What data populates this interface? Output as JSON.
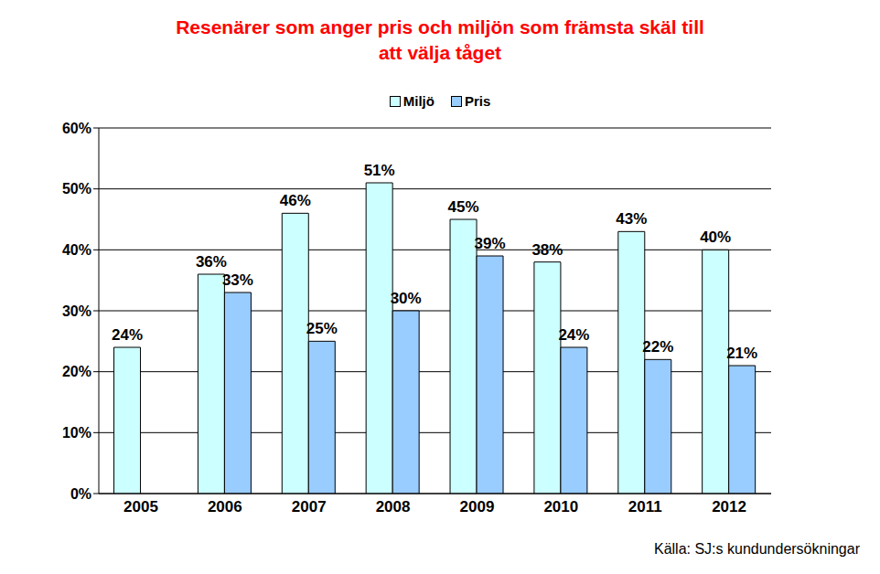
{
  "chart_data": {
    "type": "bar",
    "title": "Resenärer som anger pris och miljön som främsta skäl till att välja tåget",
    "annotations": [
      "Källa: SJ:s kundundersökningar"
    ],
    "categories": [
      "2005",
      "2006",
      "2007",
      "2008",
      "2009",
      "2010",
      "2011",
      "2012"
    ],
    "series": [
      {
        "name": "Miljö",
        "color": "#ccffff",
        "values": [
          24,
          36,
          46,
          51,
          45,
          38,
          43,
          40
        ],
        "value_labels": [
          "24%",
          "36%",
          "46%",
          "51%",
          "45%",
          "38%",
          "43%",
          "40%"
        ]
      },
      {
        "name": "Pris",
        "color": "#99ccff",
        "values": [
          null,
          33,
          25,
          30,
          39,
          24,
          22,
          21
        ],
        "value_labels": [
          null,
          "33%",
          "25%",
          "30%",
          "39%",
          "24%",
          "22%",
          "21%"
        ]
      }
    ],
    "ylim": [
      0,
      60
    ],
    "yticks": [
      {
        "value": 0,
        "label": "0%"
      },
      {
        "value": 10,
        "label": "10%"
      },
      {
        "value": 20,
        "label": "20%"
      },
      {
        "value": 30,
        "label": "30%"
      },
      {
        "value": 40,
        "label": "40%"
      },
      {
        "value": 50,
        "label": "50%"
      },
      {
        "value": 60,
        "label": "60%"
      }
    ],
    "grid": true,
    "data_labels": true,
    "legend": "top"
  }
}
